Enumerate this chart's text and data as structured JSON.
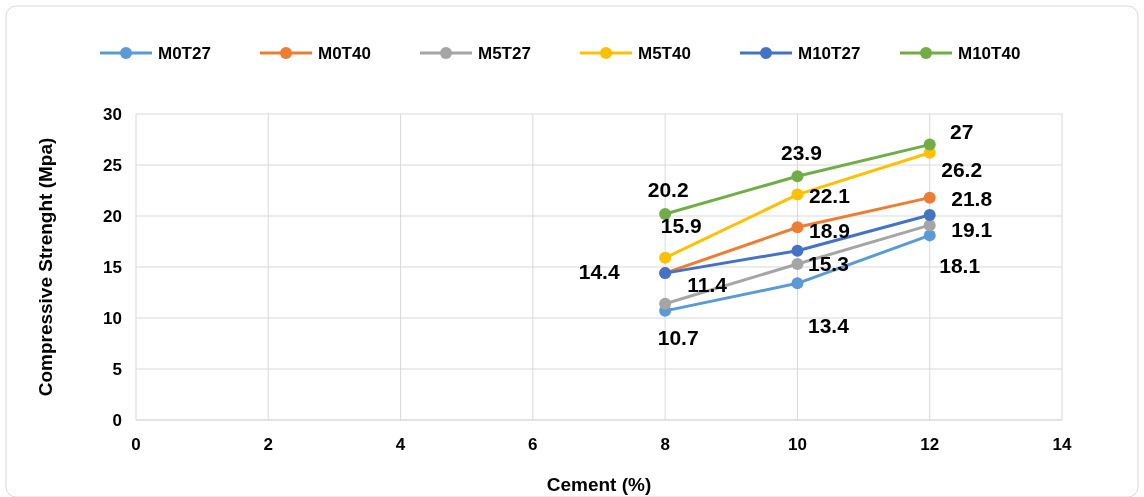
{
  "chart_data": {
    "type": "line",
    "xlabel": "Cement (%)",
    "ylabel": "Compressive Strenght (Mpa)",
    "x": [
      8,
      10,
      12
    ],
    "xlim": [
      0,
      14
    ],
    "xticks": [
      0,
      2,
      4,
      6,
      8,
      10,
      12,
      14
    ],
    "ylim": [
      0,
      30
    ],
    "yticks": [
      0,
      5,
      10,
      15,
      20,
      25,
      30
    ],
    "grid": true,
    "legend": "top",
    "marker": "circle",
    "series": [
      {
        "name": "M0T27",
        "color": "#5b9bd5",
        "values": [
          10.7,
          13.4,
          18.1
        ],
        "value_labels": [
          "10.7",
          "13.4",
          "18.1"
        ]
      },
      {
        "name": "M0T40",
        "color": "#ed7d31",
        "values": [
          14.4,
          18.9,
          21.8
        ],
        "value_labels": [
          null,
          "18.9",
          "21.8"
        ]
      },
      {
        "name": "M5T27",
        "color": "#a5a5a5",
        "values": [
          11.4,
          15.3,
          19.1
        ],
        "value_labels": [
          "11.4",
          "15.3",
          "19.1"
        ]
      },
      {
        "name": "M5T40",
        "color": "#ffc000",
        "values": [
          15.9,
          22.1,
          26.2
        ],
        "value_labels": [
          "15.9",
          "22.1",
          "26.2"
        ]
      },
      {
        "name": "M10T27",
        "color": "#4472c4",
        "values": [
          14.4,
          16.6,
          20.1
        ],
        "value_labels": [
          "14.4",
          null,
          null
        ]
      },
      {
        "name": "M10T40",
        "color": "#70ad47",
        "values": [
          20.2,
          23.9,
          27
        ],
        "value_labels": [
          "20.2",
          "23.9",
          "27"
        ]
      }
    ]
  }
}
